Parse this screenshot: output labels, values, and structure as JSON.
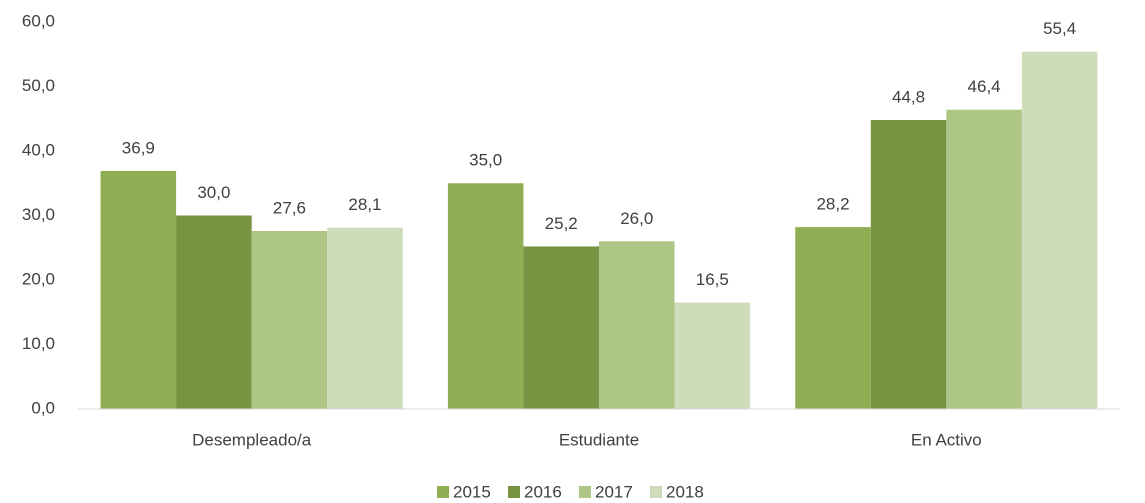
{
  "chart_data": {
    "type": "bar",
    "categories": [
      "Desempleado/a",
      "Estudiante",
      "En Activo"
    ],
    "series": [
      {
        "name": "2015",
        "color": "#8faf55",
        "values": [
          36.9,
          35.0,
          28.2
        ],
        "value_labels": [
          "36,9",
          "35,0",
          "28,2"
        ]
      },
      {
        "name": "2016",
        "color": "#789342",
        "values": [
          30.0,
          25.2,
          44.8
        ],
        "value_labels": [
          "30,0",
          "25,2",
          "44,8"
        ]
      },
      {
        "name": "2017",
        "color": "#adc686",
        "values": [
          27.6,
          26.0,
          46.4
        ],
        "value_labels": [
          "27,6",
          "26,0",
          "46,4"
        ]
      },
      {
        "name": "2018",
        "color": "#cfdcba",
        "values": [
          28.1,
          16.5,
          55.4
        ],
        "value_labels": [
          "28,1",
          "16,5",
          "55,4"
        ]
      }
    ],
    "ylim": [
      0,
      60
    ],
    "yticks": [
      {
        "value": 0,
        "label": "0,0"
      },
      {
        "value": 10,
        "label": "10,0"
      },
      {
        "value": 20,
        "label": "20,0"
      },
      {
        "value": 30,
        "label": "30,0"
      },
      {
        "value": 40,
        "label": "40,0"
      },
      {
        "value": 50,
        "label": "50,0"
      },
      {
        "value": 60,
        "label": "60,0"
      }
    ],
    "grid": false,
    "legend": "bottom"
  }
}
